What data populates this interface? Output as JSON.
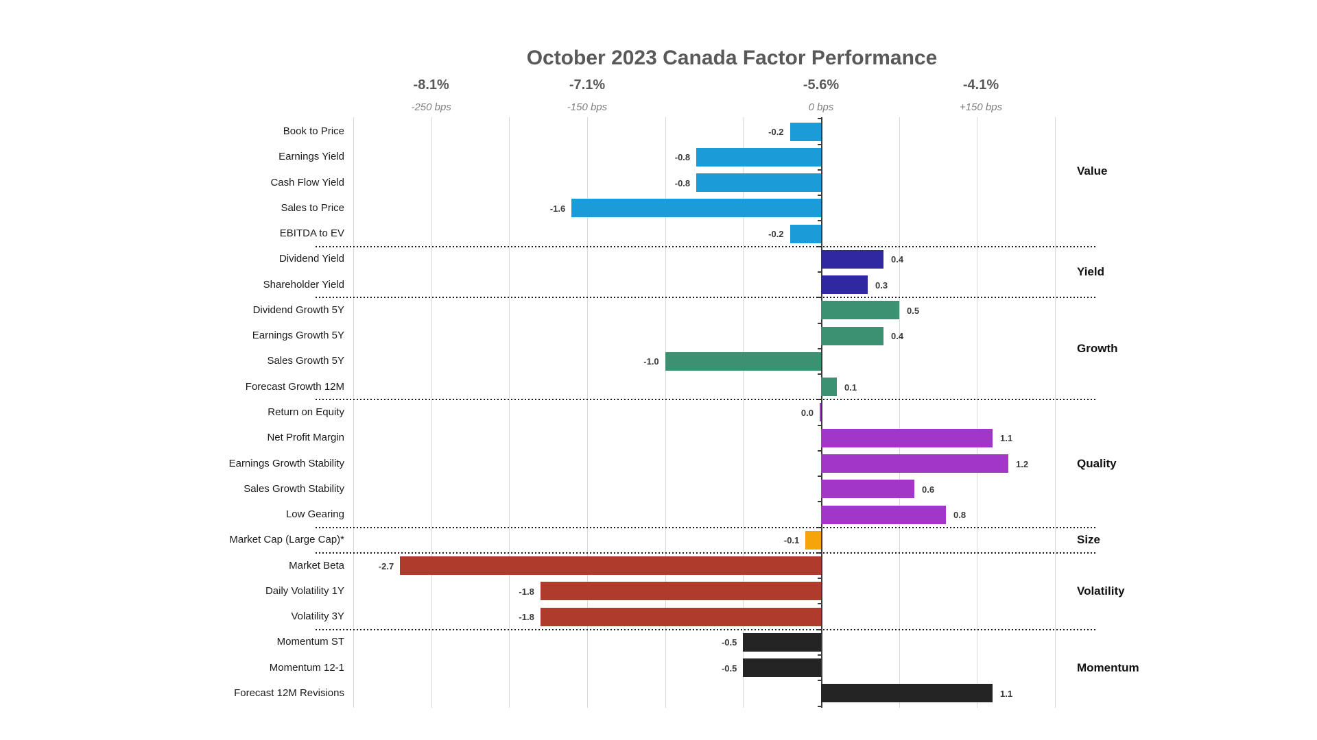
{
  "title": "October 2023 Canada Factor Performance",
  "header_ticks": [
    {
      "percent": "-8.1%",
      "bps": "-250 bps"
    },
    {
      "percent": "-7.1%",
      "bps": "-150 bps"
    },
    {
      "percent": "-5.6%",
      "bps": "0 bps"
    },
    {
      "percent": "-4.1%",
      "bps": "+150 bps"
    }
  ],
  "chart_data": {
    "type": "bar",
    "orientation": "horizontal",
    "title": "October 2023 Canada Factor Performance",
    "x_axis": {
      "top_labels_percent": [
        "-8.1%",
        "-7.1%",
        "-5.6%",
        "-4.1%"
      ],
      "top_labels_bps": [
        "-250 bps",
        "-150 bps",
        "0 bps",
        "+150 bps"
      ],
      "xlim": [
        -3.0,
        1.5
      ],
      "gridline_step": 0.5,
      "grid": true,
      "value_units": "percent (100 bps = 1.0)"
    },
    "legend_position": "right",
    "groups": [
      {
        "name": "Value",
        "color": "#1B9CD8",
        "factors": [
          {
            "label": "Book to Price",
            "value": -0.2
          },
          {
            "label": "Earnings Yield",
            "value": -0.8
          },
          {
            "label": "Cash Flow Yield",
            "value": -0.8
          },
          {
            "label": "Sales to Price",
            "value": -1.6
          },
          {
            "label": "EBITDA to EV",
            "value": -0.2
          }
        ]
      },
      {
        "name": "Yield",
        "color": "#2F28A0",
        "factors": [
          {
            "label": "Dividend Yield",
            "value": 0.4
          },
          {
            "label": "Shareholder Yield",
            "value": 0.3
          }
        ]
      },
      {
        "name": "Growth",
        "color": "#3A9272",
        "factors": [
          {
            "label": "Dividend Growth 5Y",
            "value": 0.5
          },
          {
            "label": "Earnings Growth 5Y",
            "value": 0.4
          },
          {
            "label": "Sales Growth 5Y",
            "value": -1.0
          },
          {
            "label": "Forecast Growth 12M",
            "value": 0.1
          }
        ]
      },
      {
        "name": "Quality",
        "color": "#A136C9",
        "factors": [
          {
            "label": "Return on Equity",
            "value": 0.0
          },
          {
            "label": "Net Profit Margin",
            "value": 1.1
          },
          {
            "label": "Earnings Growth Stability",
            "value": 1.2
          },
          {
            "label": "Sales Growth Stability",
            "value": 0.6
          },
          {
            "label": "Low Gearing",
            "value": 0.8
          }
        ]
      },
      {
        "name": "Size",
        "color": "#F5A50A",
        "factors": [
          {
            "label": "Market Cap (Large Cap)*",
            "value": -0.1
          }
        ]
      },
      {
        "name": "Volatility",
        "color": "#AE3B2B",
        "factors": [
          {
            "label": "Market Beta",
            "value": -2.7
          },
          {
            "label": "Daily Volatility 1Y",
            "value": -1.8
          },
          {
            "label": "Volatility 3Y",
            "value": -1.8
          }
        ]
      },
      {
        "name": "Momentum",
        "color": "#242424",
        "factors": [
          {
            "label": "Momentum ST",
            "value": -0.5
          },
          {
            "label": "Momentum 12-1",
            "value": -0.5
          },
          {
            "label": "Forecast 12M Revisions",
            "value": 1.1
          }
        ]
      }
    ]
  }
}
